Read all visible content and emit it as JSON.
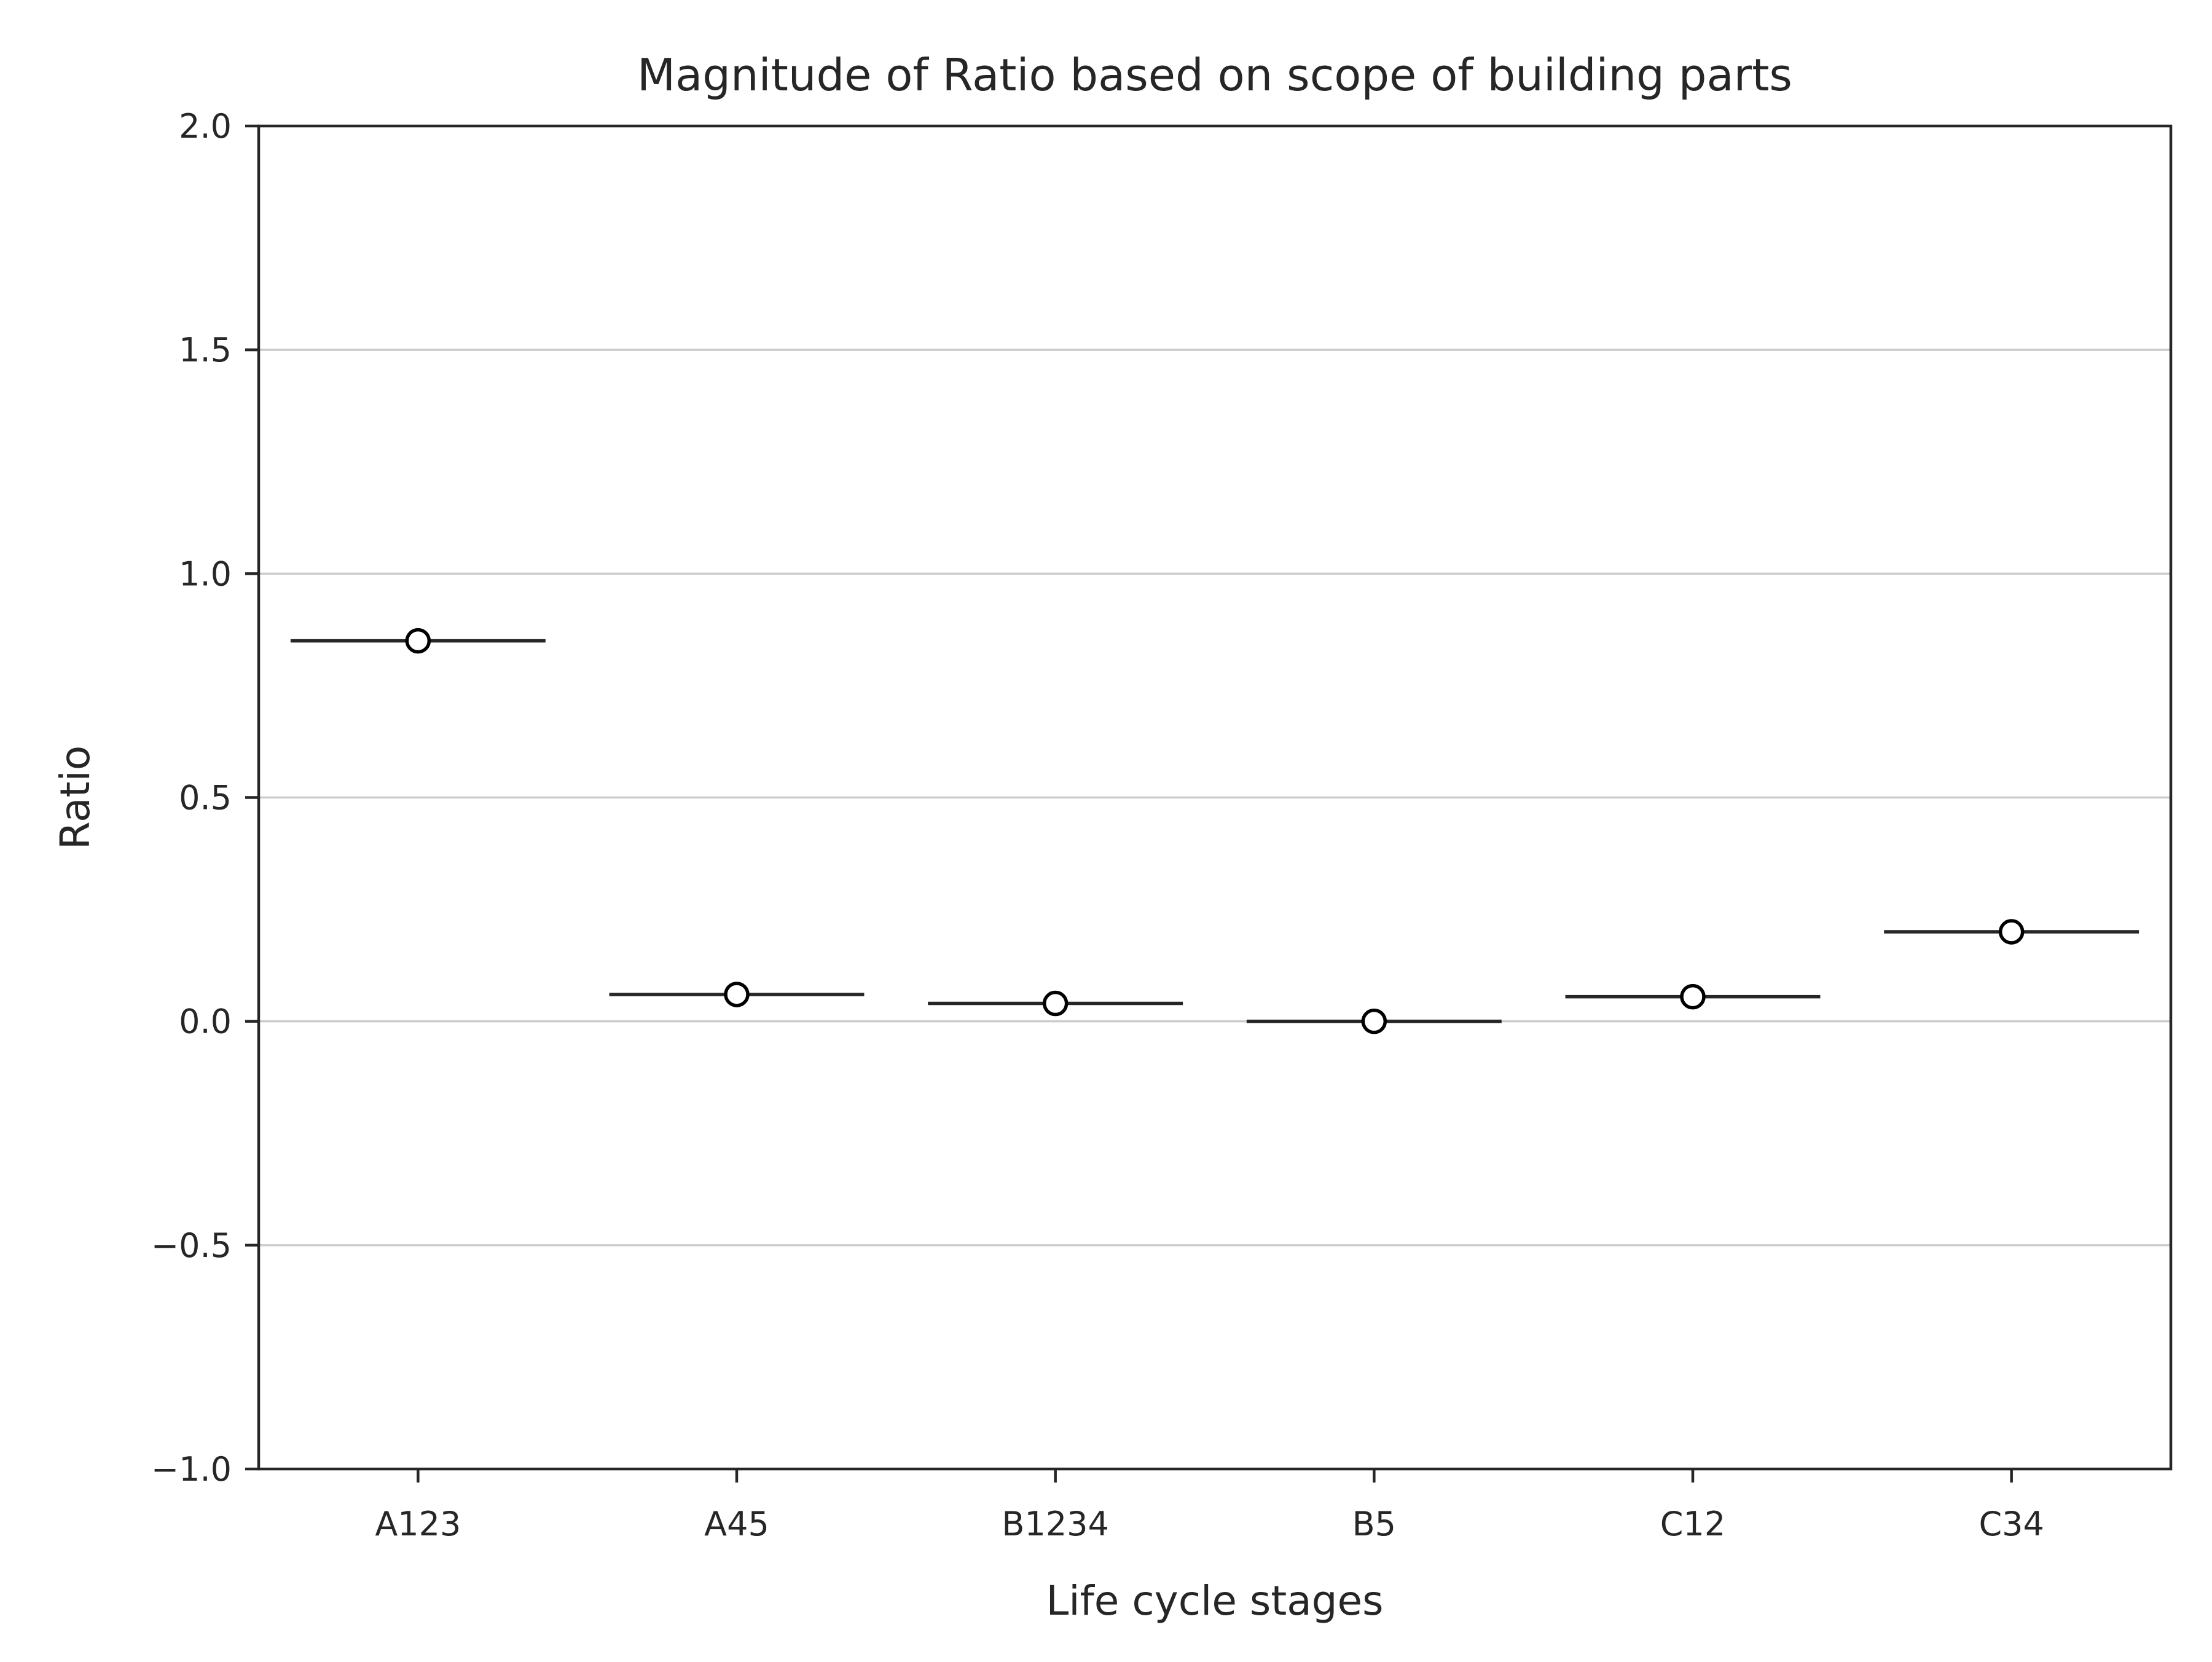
{
  "chart_data": {
    "type": "box",
    "title": "Magnitude of Ratio based on scope of building parts",
    "xlabel": "Life cycle stages",
    "ylabel": "Ratio",
    "categories": [
      "A123",
      "A45",
      "B1234",
      "B5",
      "C12",
      "C34"
    ],
    "values": [
      0.85,
      0.06,
      0.04,
      0.0,
      0.055,
      0.2
    ],
    "marker": "mean (open circle) with median line",
    "ylim": [
      -1.0,
      2.0
    ],
    "yticks": [
      -1.0,
      -0.5,
      0.0,
      0.5,
      1.0,
      1.5,
      2.0
    ],
    "ytick_labels": [
      "−1.0",
      "−0.5",
      "0.0",
      "0.5",
      "1.0",
      "1.5",
      "2.0"
    ],
    "grid": "horizontal",
    "legend": "none",
    "colors": {
      "axis": "#262626",
      "grid": "#cccccc",
      "line": "#262626",
      "marker_fill": "#ffffff",
      "marker_edge": "#000000"
    }
  }
}
